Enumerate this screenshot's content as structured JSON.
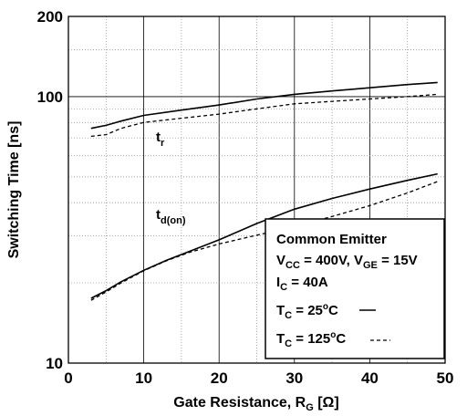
{
  "chart_data": {
    "type": "line",
    "xlabel": "Gate Resistance, R",
    "xlabel_sub": "G",
    "xlabel_unit": " [Ω]",
    "ylabel": "Switching Time [ns]",
    "x_ticks": [
      "0",
      "10",
      "20",
      "30",
      "40",
      "50"
    ],
    "y_ticks": [
      "10",
      "100",
      "200"
    ],
    "xlim": [
      0,
      50
    ],
    "ylim": [
      10,
      200
    ],
    "y_scale": "log",
    "grid": true,
    "series": [
      {
        "name": "t_r",
        "condition": "T_C = 25°C",
        "style": "solid",
        "x": [
          3,
          5,
          7,
          10,
          15,
          20,
          25,
          30,
          35,
          40,
          45,
          49
        ],
        "y": [
          76,
          78,
          81,
          85,
          89,
          93,
          98,
          102,
          105,
          108,
          111,
          113
        ]
      },
      {
        "name": "t_r",
        "condition": "T_C = 125°C",
        "style": "dashed",
        "x": [
          3,
          5,
          7,
          10,
          15,
          20,
          25,
          30,
          35,
          40,
          45,
          49
        ],
        "y": [
          71,
          72,
          76,
          80,
          83,
          86,
          90,
          94,
          96,
          98,
          100,
          102
        ]
      },
      {
        "name": "t_d(on)",
        "condition": "T_C = 25°C",
        "style": "solid",
        "x": [
          3,
          5,
          7,
          10,
          13,
          16,
          20,
          25,
          30,
          35,
          40,
          45,
          49
        ],
        "y": [
          17.5,
          18.7,
          20.2,
          22.3,
          24.3,
          26.2,
          29,
          33.4,
          37.8,
          41.5,
          45,
          48.5,
          51.3
        ]
      },
      {
        "name": "t_d(on)",
        "condition": "T_C = 125°C",
        "style": "dashed",
        "x": [
          3,
          5,
          7,
          10,
          13,
          16,
          20,
          25,
          30,
          35,
          40,
          45,
          49
        ],
        "y": [
          17.2,
          18.5,
          20,
          22.2,
          24.2,
          26,
          28,
          30.2,
          32.5,
          35.5,
          39,
          43.5,
          48
        ]
      }
    ],
    "annotations": {
      "tr": {
        "main": "t",
        "sub": "r"
      },
      "tdon": {
        "main": "t",
        "sub": "d(on)"
      }
    },
    "legend": {
      "placement": "bottom-right",
      "line1": "Common Emitter",
      "line2_a": "V",
      "line2_a_sub": "CC",
      "line2_b": " = 400V, V",
      "line2_b_sub": "GE",
      "line2_c": " = 15V",
      "line3_a": "I",
      "line3_a_sub": "C",
      "line3_b": " = 40A",
      "line4_a": "T",
      "line4_a_sub": "C",
      "line4_b": " = 25",
      "line4_sup": "o",
      "line4_c": "C",
      "line5_a": "T",
      "line5_a_sub": "C",
      "line5_b": " = 125",
      "line5_sup": "o",
      "line5_c": "C"
    }
  }
}
